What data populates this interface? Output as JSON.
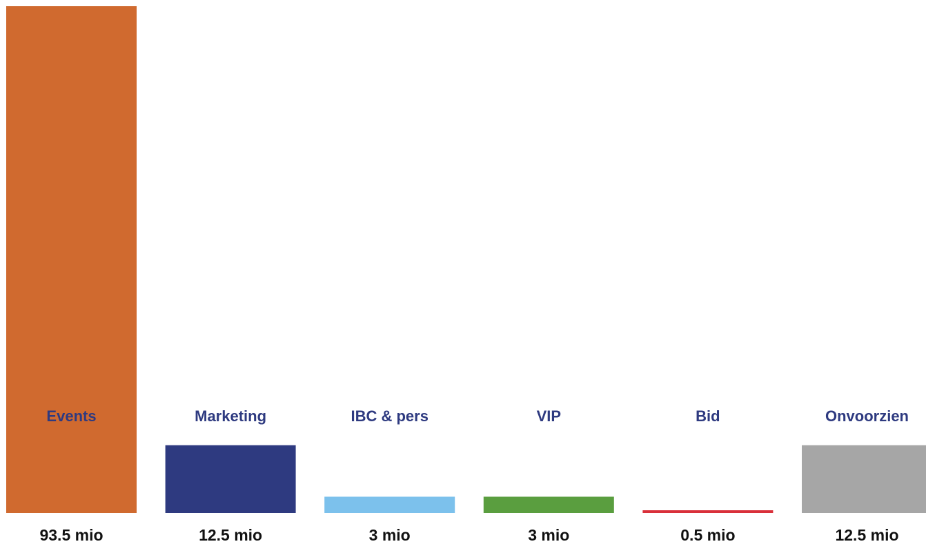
{
  "chart_data": {
    "type": "bar",
    "categories": [
      "Events",
      "Marketing",
      "IBC & pers",
      "VIP",
      "Bid",
      "Onvoorzien"
    ],
    "values": [
      93.5,
      12.5,
      3,
      3,
      0.5,
      12.5
    ],
    "value_labels": [
      "93.5 mio",
      "12.5 mio",
      "3 mio",
      "3 mio",
      "0.5 mio",
      "12.5 mio"
    ],
    "bar_colors": [
      "#d06a2f",
      "#2e3a80",
      "#7cc1ec",
      "#5a9e3f",
      "#d9303a",
      "#a6a6a6"
    ],
    "category_label_color": "#2e3a80",
    "value_label_color": "#111111",
    "ylim": [
      0,
      93.5
    ],
    "title": "",
    "xlabel": "",
    "ylabel": "",
    "grid": false,
    "legend": "none"
  }
}
